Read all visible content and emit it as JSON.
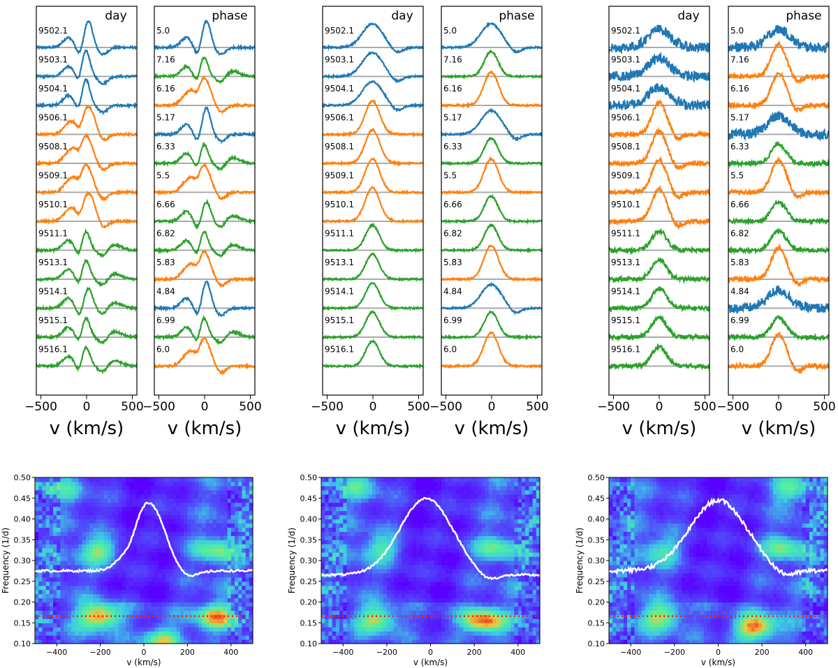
{
  "colors": {
    "blue": "#1f77b4",
    "orange": "#ff7f0e",
    "green": "#2ca02c",
    "grey": "#aaaaaa",
    "white": "#ffffff",
    "red": "#e8251d"
  },
  "chart_data": {
    "type": "line",
    "description_xlabel": "v (km/s)",
    "profile_xticks": [
      -500,
      0,
      500
    ],
    "profile_xlim": [
      -550,
      550
    ],
    "day_label": "day",
    "phase_label": "phase",
    "day_rows": [
      "9502.1",
      "9503.1",
      "9504.1",
      "9506.1",
      "9508.1",
      "9509.1",
      "9510.1",
      "9511.1",
      "9513.1",
      "9514.1",
      "9515.1",
      "9516.1"
    ],
    "day_colors": [
      "blue",
      "blue",
      "blue",
      "orange",
      "orange",
      "orange",
      "orange",
      "green",
      "green",
      "green",
      "green",
      "green"
    ],
    "phase_panels": [
      {
        "rows": [
          "5.0",
          "7.16",
          "6.16",
          "5.17",
          "6.33",
          "5.5",
          "6.66",
          "6.82",
          "5.83",
          "4.84",
          "6.99",
          "6.0"
        ],
        "colors": [
          "blue",
          "green",
          "orange",
          "blue",
          "green",
          "orange",
          "green",
          "green",
          "orange",
          "blue",
          "green",
          "orange"
        ]
      },
      {
        "rows": [
          "5.0",
          "7.16",
          "6.16",
          "5.17",
          "6.33",
          "5.5",
          "6.66",
          "6.82",
          "5.83",
          "4.84",
          "6.99",
          "6.0"
        ],
        "colors": [
          "blue",
          "green",
          "orange",
          "blue",
          "green",
          "orange",
          "green",
          "green",
          "orange",
          "blue",
          "green",
          "orange"
        ]
      },
      {
        "rows": [
          "5.0",
          "7.16",
          "6.16",
          "5.17",
          "6.33",
          "5.5",
          "6.66",
          "6.82",
          "5.83",
          "4.84",
          "6.99",
          "6.0"
        ],
        "colors": [
          "blue",
          "orange",
          "orange",
          "blue",
          "green",
          "orange",
          "green",
          "green",
          "orange",
          "blue",
          "green",
          "orange"
        ]
      }
    ],
    "periodograms": {
      "type": "heatmap",
      "xlabel": "v (km/s)",
      "ylabel": "Frequency (1/d)",
      "xlim": [
        -500,
        500
      ],
      "ylim": [
        0.1,
        0.5
      ],
      "xticks": [
        -400,
        -200,
        0,
        200,
        400
      ],
      "yticks": [
        "0.10",
        "0.15",
        "0.20",
        "0.25",
        "0.30",
        "0.35",
        "0.40",
        "0.45",
        "0.50"
      ],
      "red_line_frequency": 0.166,
      "hotspots": [
        [
          {
            "v": -200,
            "f": 0.167,
            "a": 1.0
          },
          {
            "v": 330,
            "f": 0.167,
            "a": 0.8
          },
          {
            "v": -200,
            "f": 0.325,
            "a": 0.7
          },
          {
            "v": 330,
            "f": 0.325,
            "a": 0.6
          },
          {
            "v": 80,
            "f": 0.11,
            "a": 0.7
          },
          {
            "v": -380,
            "f": 0.47,
            "a": 0.35
          }
        ],
        [
          {
            "v": -240,
            "f": 0.16,
            "a": 0.7
          },
          {
            "v": 240,
            "f": 0.155,
            "a": 1.0
          },
          {
            "v": -220,
            "f": 0.33,
            "a": 0.55
          },
          {
            "v": 300,
            "f": 0.33,
            "a": 0.55
          },
          {
            "v": -330,
            "f": 0.48,
            "a": 0.4
          }
        ],
        [
          {
            "v": -260,
            "f": 0.165,
            "a": 0.7
          },
          {
            "v": 170,
            "f": 0.14,
            "a": 1.0
          },
          {
            "v": -260,
            "f": 0.325,
            "a": 0.5
          },
          {
            "v": 300,
            "f": 0.33,
            "a": 0.55
          },
          {
            "v": 330,
            "f": 0.47,
            "a": 0.5
          }
        ]
      ],
      "mean_profile": [
        {
          "base": 0.275,
          "peak": 0.44,
          "center": 20,
          "width": 75,
          "dip_center": -60,
          "dip": 0.02
        },
        {
          "base": 0.265,
          "peak": 0.45,
          "center": -20,
          "width": 120,
          "dip_center": 0,
          "dip": 0
        },
        {
          "base": 0.275,
          "peak": 0.445,
          "center": 0,
          "width": 130,
          "dip_center": 0,
          "dip": 0
        }
      ]
    }
  }
}
